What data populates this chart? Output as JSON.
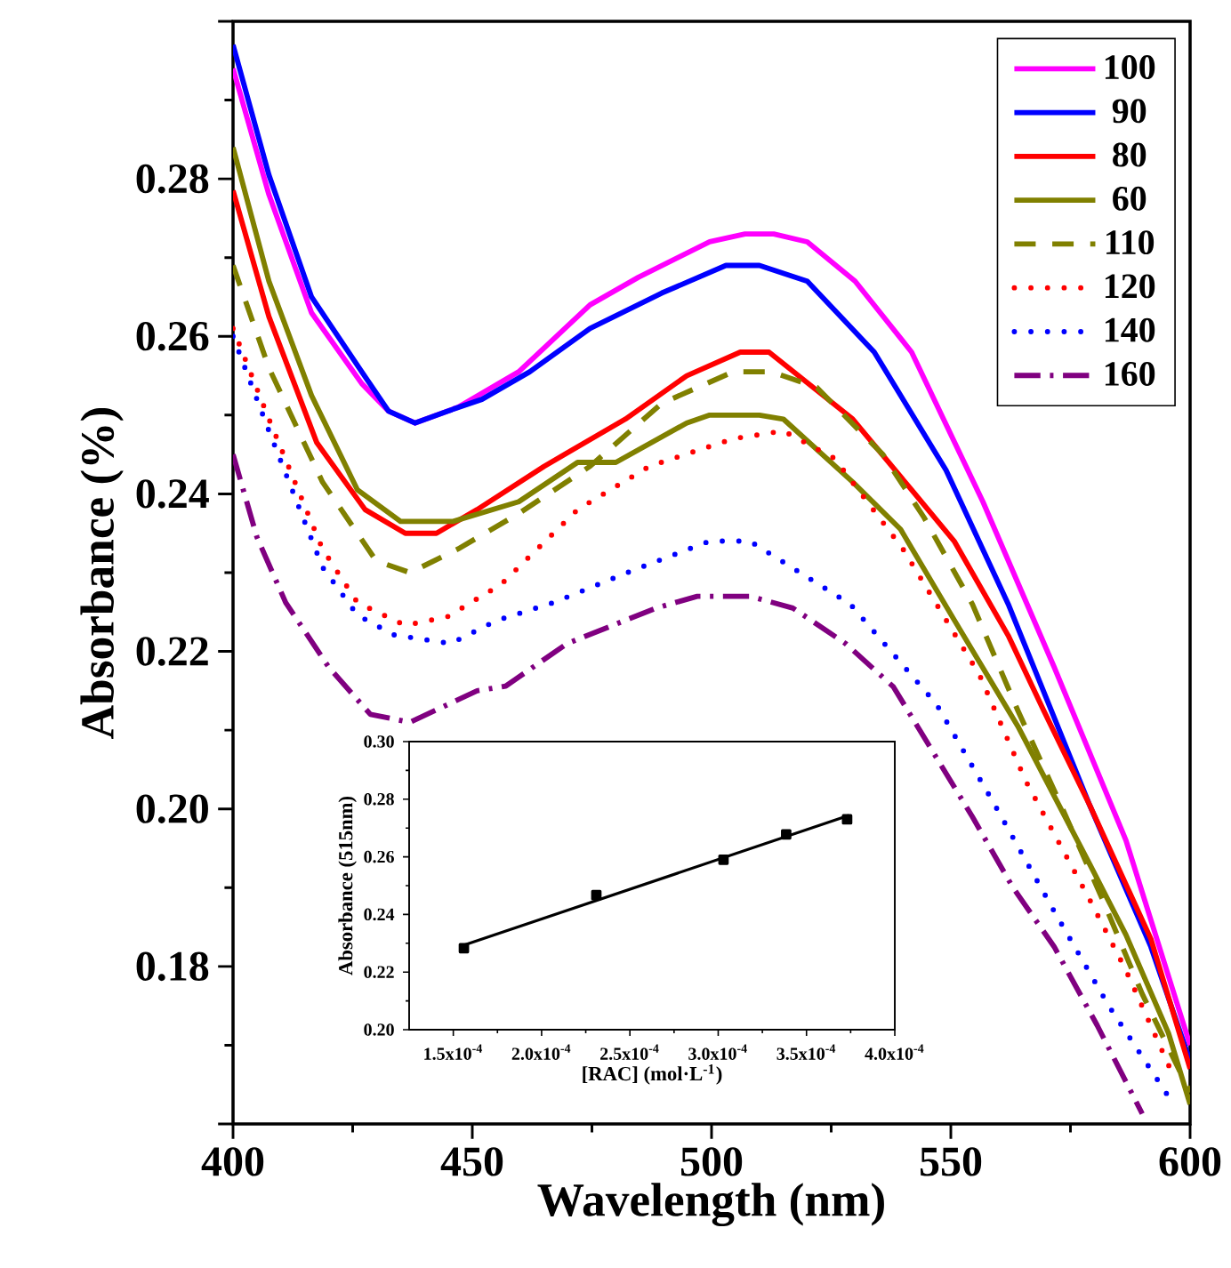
{
  "chart_data": [
    {
      "type": "line",
      "xlabel": "Wavelength (nm)",
      "ylabel": "Absorbance (%)",
      "xlim": [
        400,
        600
      ],
      "ylim": [
        0.16,
        0.3
      ],
      "xticks": [
        400,
        450,
        500,
        550,
        600
      ],
      "yticks": [
        {
          "value": 0.16,
          "label": null
        },
        0.18,
        {
          "value": 0.2,
          "label": "0.20"
        },
        0.22,
        0.24,
        0.26,
        0.28,
        {
          "value": 0.3,
          "label": null
        }
      ],
      "legend": "top right",
      "series": [
        {
          "name": "100",
          "color": "#ff00ff",
          "line_style": "solid",
          "x": [
            400,
            407.5,
            416.4,
            426.9,
            432.5,
            438,
            447,
            459.7,
            474.6,
            484.7,
            499.6,
            507,
            513,
            520,
            530,
            541.8,
            556.7,
            571.6,
            586.6,
            600
          ],
          "values": [
            0.294,
            0.278,
            0.263,
            0.254,
            0.2505,
            0.249,
            0.251,
            0.2555,
            0.264,
            0.2675,
            0.272,
            0.273,
            0.273,
            0.272,
            0.267,
            0.258,
            0.239,
            0.218,
            0.196,
            0.17
          ]
        },
        {
          "name": "90",
          "color": "#0000ff",
          "line_style": "solid",
          "x": [
            400,
            407.5,
            416.4,
            426.9,
            432.5,
            438,
            444.8,
            452,
            462,
            474.6,
            489.6,
            503,
            510,
            520,
            534,
            549,
            562,
            579,
            591.8,
            600
          ],
          "values": [
            0.297,
            0.2805,
            0.265,
            0.2555,
            0.2505,
            0.249,
            0.2505,
            0.252,
            0.2555,
            0.261,
            0.2655,
            0.269,
            0.269,
            0.267,
            0.258,
            0.243,
            0.226,
            0.2005,
            0.1825,
            0.168
          ]
        },
        {
          "name": "80",
          "color": "#ff0000",
          "line_style": "solid",
          "x": [
            400,
            407.5,
            417.5,
            427.6,
            436,
            442.5,
            451,
            465,
            482,
            494.8,
            506,
            512,
            529.5,
            541.8,
            550.7,
            562,
            569.4,
            579,
            591.8,
            600
          ],
          "values": [
            0.2785,
            0.2625,
            0.2465,
            0.238,
            0.235,
            0.235,
            0.238,
            0.2435,
            0.2495,
            0.255,
            0.258,
            0.258,
            0.2495,
            0.2405,
            0.234,
            0.222,
            0.2125,
            0.2005,
            0.1835,
            0.167
          ]
        },
        {
          "name": "60",
          "color": "#808000",
          "line_style": "solid",
          "x": [
            400,
            407.5,
            416.4,
            426,
            435,
            446,
            459.7,
            472,
            480,
            494.8,
            499.6,
            510,
            515,
            529.5,
            539.5,
            550.7,
            564,
            579,
            586.6,
            595.5,
            600
          ],
          "values": [
            0.284,
            0.267,
            0.2525,
            0.2405,
            0.2365,
            0.2365,
            0.239,
            0.244,
            0.244,
            0.249,
            0.25,
            0.25,
            0.2495,
            0.2415,
            0.2355,
            0.224,
            0.2105,
            0.193,
            0.184,
            0.1715,
            0.1625
          ]
        },
        {
          "name": "110",
          "color": "#808000",
          "line_style": "dashed",
          "x": [
            400,
            407.5,
            418.7,
            429.9,
            437,
            447,
            459.7,
            474.6,
            489.6,
            504.5,
            512.6,
            522,
            535.8,
            544.4,
            554.5,
            564,
            573,
            581.7,
            590,
            600
          ],
          "values": [
            0.269,
            0.256,
            0.2415,
            0.2315,
            0.23,
            0.233,
            0.2375,
            0.2435,
            0.2515,
            0.2555,
            0.2555,
            0.2535,
            0.245,
            0.237,
            0.226,
            0.2125,
            0.2005,
            0.1885,
            0.1765,
            0.164
          ]
        },
        {
          "name": "120",
          "color": "#ff0000",
          "line_style": "dotted",
          "x": [
            400,
            407.5,
            418.7,
            426,
            436,
            444.8,
            456,
            472,
            487,
            504.5,
            515,
            525.7,
            540,
            549,
            556,
            565.7,
            579,
            586.6,
            596
          ],
          "values": [
            0.261,
            0.2495,
            0.233,
            0.2262,
            0.2233,
            0.2244,
            0.2285,
            0.238,
            0.2435,
            0.247,
            0.248,
            0.2445,
            0.233,
            0.224,
            0.217,
            0.2035,
            0.1885,
            0.1795,
            0.1668
          ]
        },
        {
          "name": "140",
          "color": "#0000ff",
          "line_style": "dotted",
          "x": [
            400,
            407.5,
            418.7,
            426,
            433.6,
            445.5,
            455,
            467,
            483.6,
            499.6,
            508,
            529,
            547,
            559,
            571.6,
            583,
            596
          ],
          "values": [
            0.26,
            0.248,
            0.2307,
            0.2246,
            0.2221,
            0.221,
            0.2239,
            0.2262,
            0.2303,
            0.234,
            0.234,
            0.226,
            0.2133,
            0.2007,
            0.187,
            0.175,
            0.163
          ]
        },
        {
          "name": "160",
          "color": "#800080",
          "line_style": "dashdot",
          "x": [
            400,
            405,
            411,
            420,
            428.7,
            437,
            451,
            457,
            469.8,
            488.4,
            497,
            508,
            517,
            528,
            538,
            545.5,
            554.5,
            563,
            571.6,
            580.6,
            590
          ],
          "values": [
            0.245,
            0.2345,
            0.2262,
            0.218,
            0.212,
            0.211,
            0.215,
            0.2156,
            0.221,
            0.2255,
            0.227,
            0.227,
            0.2255,
            0.221,
            0.2155,
            0.208,
            0.199,
            0.19,
            0.1825,
            0.1725,
            0.1613
          ]
        }
      ]
    },
    {
      "type": "scatter",
      "xlabel": "[RAC] (mol·L$^{-1}$)",
      "ylabel": "Absorbance (515nm)",
      "xlim": [
        0.000125,
        0.0004
      ],
      "ylim": [
        0.2,
        0.3
      ],
      "xticks": [
        {
          "value": 0.00015,
          "label": "1.5x10$^{-4}$"
        },
        {
          "value": 0.0002,
          "label": "2.0x10$^{-4}$"
        },
        {
          "value": 0.00025,
          "label": "2.5x10$^{-4}$"
        },
        {
          "value": 0.0003,
          "label": "3.0x10$^{-4}$"
        },
        {
          "value": 0.00035,
          "label": "3.5x10$^{-4}$"
        },
        {
          "value": 0.0004,
          "label": "4.0x10$^{-4}$"
        }
      ],
      "yticks": [
        {
          "value": 0.2,
          "label": "0.20"
        },
        0.22,
        0.24,
        0.26,
        0.28,
        {
          "value": 0.3,
          "label": "0.30"
        }
      ],
      "series": [
        {
          "type": "scatter",
          "marker": "square",
          "color": "#000000",
          "x": [
            0.000156,
            0.000231,
            0.000303,
            0.0003385,
            0.000373
          ],
          "values": [
            0.2283,
            0.2467,
            0.259,
            0.2678,
            0.273
          ]
        },
        {
          "type": "line",
          "color": "#000000",
          "line_style": "solid",
          "x": [
            0.000154,
            0.000374
          ],
          "values": [
            0.2289,
            0.2744
          ]
        }
      ]
    }
  ]
}
